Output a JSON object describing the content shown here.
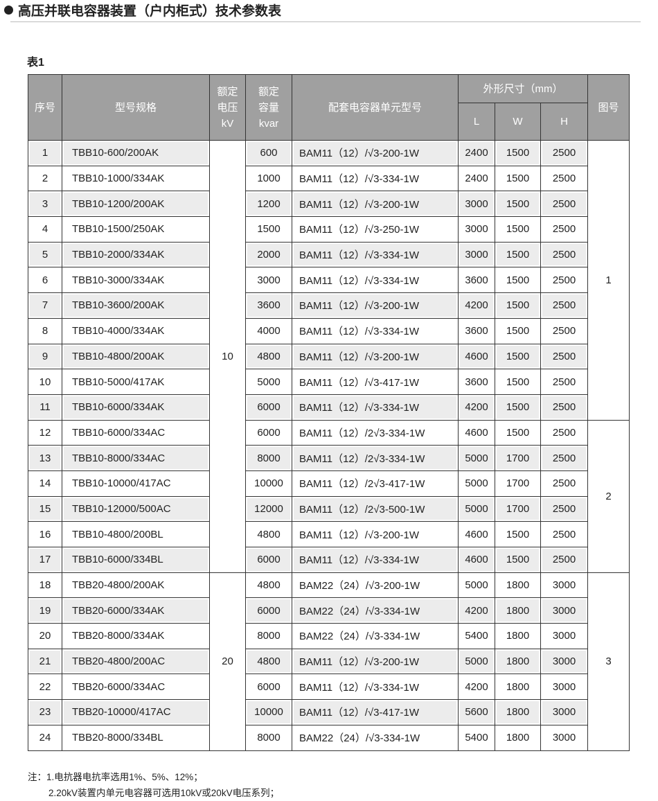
{
  "title": "高压并联电容器装置（户内柜式）技术参数表",
  "table_label": "表1",
  "headers": {
    "index": "序号",
    "model": "型号规格",
    "voltage": [
      "额定",
      "电压",
      "kV"
    ],
    "capacity": [
      "额定",
      "容量",
      "kvar"
    ],
    "unit": "配套电容器单元型号",
    "dims": "外形尺寸（mm）",
    "L": "L",
    "W": "W",
    "H": "H",
    "figure": "图号"
  },
  "voltage_groups": [
    {
      "value": "10",
      "rows": 17
    },
    {
      "value": "20",
      "rows": 7
    }
  ],
  "figure_groups": [
    {
      "value": "1",
      "rows": 11
    },
    {
      "value": "2",
      "rows": 6
    },
    {
      "value": "3",
      "rows": 7
    }
  ],
  "rows": [
    [
      "1",
      "TBB10-600/200AK",
      "600",
      "BAM11（12）/√3-200-1W",
      "2400",
      "1500",
      "2500"
    ],
    [
      "2",
      "TBB10-1000/334AK",
      "1000",
      "BAM11（12）/√3-334-1W",
      "2400",
      "1500",
      "2500"
    ],
    [
      "3",
      "TBB10-1200/200AK",
      "1200",
      "BAM11（12）/√3-200-1W",
      "3000",
      "1500",
      "2500"
    ],
    [
      "4",
      "TBB10-1500/250AK",
      "1500",
      "BAM11（12）/√3-250-1W",
      "3000",
      "1500",
      "2500"
    ],
    [
      "5",
      "TBB10-2000/334AK",
      "2000",
      "BAM11（12）/√3-334-1W",
      "3000",
      "1500",
      "2500"
    ],
    [
      "6",
      "TBB10-3000/334AK",
      "3000",
      "BAM11（12）/√3-334-1W",
      "3600",
      "1500",
      "2500"
    ],
    [
      "7",
      "TBB10-3600/200AK",
      "3600",
      "BAM11（12）/√3-200-1W",
      "4200",
      "1500",
      "2500"
    ],
    [
      "8",
      "TBB10-4000/334AK",
      "4000",
      "BAM11（12）/√3-334-1W",
      "3600",
      "1500",
      "2500"
    ],
    [
      "9",
      "TBB10-4800/200AK",
      "4800",
      "BAM11（12）/√3-200-1W",
      "4600",
      "1500",
      "2500"
    ],
    [
      "10",
      "TBB10-5000/417AK",
      "5000",
      "BAM11（12）/√3-417-1W",
      "3600",
      "1500",
      "2500"
    ],
    [
      "11",
      "TBB10-6000/334AK",
      "6000",
      "BAM11（12）/√3-334-1W",
      "4200",
      "1500",
      "2500"
    ],
    [
      "12",
      "TBB10-6000/334AC",
      "6000",
      "BAM11（12）/2√3-334-1W",
      "4600",
      "1500",
      "2500"
    ],
    [
      "13",
      "TBB10-8000/334AC",
      "8000",
      "BAM11（12）/2√3-334-1W",
      "5000",
      "1700",
      "2500"
    ],
    [
      "14",
      "TBB10-10000/417AC",
      "10000",
      "BAM11（12）/2√3-417-1W",
      "5000",
      "1700",
      "2500"
    ],
    [
      "15",
      "TBB10-12000/500AC",
      "12000",
      "BAM11（12）/2√3-500-1W",
      "5000",
      "1700",
      "2500"
    ],
    [
      "16",
      "TBB10-4800/200BL",
      "4800",
      "BAM11（12）/√3-200-1W",
      "4600",
      "1500",
      "2500"
    ],
    [
      "17",
      "TBB10-6000/334BL",
      "6000",
      "BAM11（12）/√3-334-1W",
      "4600",
      "1500",
      "2500"
    ],
    [
      "18",
      "TBB20-4800/200AK",
      "4800",
      "BAM22（24）/√3-200-1W",
      "5000",
      "1800",
      "3000"
    ],
    [
      "19",
      "TBB20-6000/334AK",
      "6000",
      "BAM22（24）/√3-334-1W",
      "4200",
      "1800",
      "3000"
    ],
    [
      "20",
      "TBB20-8000/334AK",
      "8000",
      "BAM22（24）/√3-334-1W",
      "5400",
      "1800",
      "3000"
    ],
    [
      "21",
      "TBB20-4800/200AC",
      "4800",
      "BAM11（12）/√3-200-1W",
      "5000",
      "1800",
      "3000"
    ],
    [
      "22",
      "TBB20-6000/334AC",
      "6000",
      "BAM11（12）/√3-334-1W",
      "4200",
      "1800",
      "3000"
    ],
    [
      "23",
      "TBB20-10000/417AC",
      "10000",
      "BAM11（12）/√3-417-1W",
      "5600",
      "1800",
      "3000"
    ],
    [
      "24",
      "TBB20-8000/334BL",
      "8000",
      "BAM22（24）/√3-334-1W",
      "5400",
      "1800",
      "3000"
    ]
  ],
  "notes": [
    "注：1.电抗器电抗率选用1%、5%、12%；",
    "2.20kV装置内单元电容器可选用10kV或20kV电压系列；"
  ]
}
